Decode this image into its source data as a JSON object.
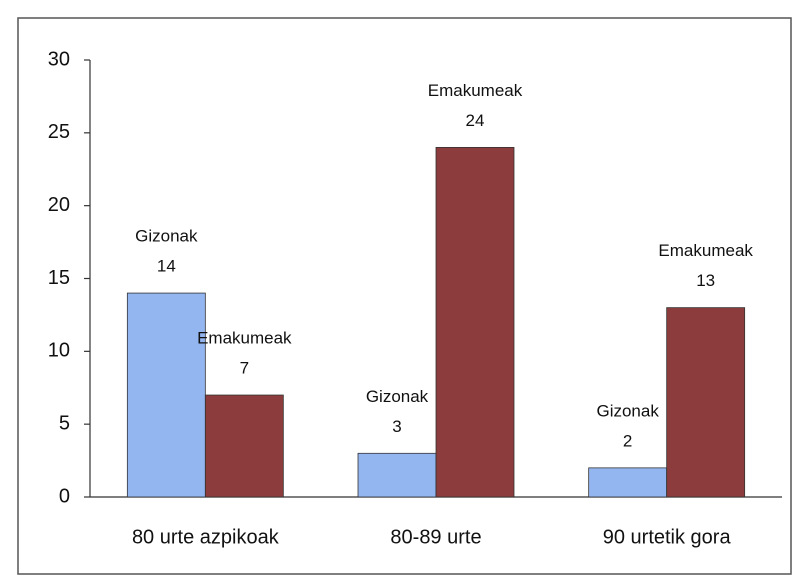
{
  "chart_data": {
    "type": "bar",
    "categories": [
      "80 urte azpikoak",
      "80-89 urte",
      "90 urtetik gora"
    ],
    "series": [
      {
        "name": "Gizonak",
        "color": "#93b5f0",
        "values": [
          14,
          3,
          2
        ]
      },
      {
        "name": "Emakumeak",
        "color": "#8c3c3c",
        "values": [
          7,
          24,
          13
        ]
      }
    ],
    "ylim": [
      0,
      30
    ],
    "yticks": [
      0,
      5,
      10,
      15,
      20,
      25,
      30
    ],
    "grid": false
  }
}
